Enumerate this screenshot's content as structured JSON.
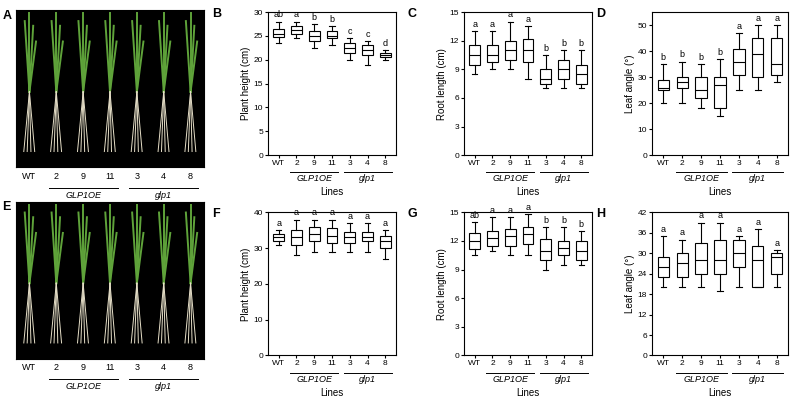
{
  "photos": [
    {
      "panel_label": "A",
      "lines": [
        "WT",
        "2",
        "9",
        "11",
        "3",
        "4",
        "8"
      ],
      "groups": [
        {
          "label": "GLP1OE",
          "members": [
            "2",
            "9",
            "11"
          ]
        },
        {
          "label": "glp1",
          "members": [
            "3",
            "4",
            "8"
          ]
        }
      ]
    },
    {
      "panel_label": "E",
      "lines": [
        "WT",
        "2",
        "9",
        "11",
        "3",
        "4",
        "8"
      ],
      "groups": [
        {
          "label": "GLP1OE",
          "members": [
            "2",
            "9",
            "11"
          ]
        },
        {
          "label": "glp1",
          "members": [
            "3",
            "4",
            "8"
          ]
        }
      ]
    }
  ],
  "chart_data": [
    {
      "type": "box",
      "panel_label": "B",
      "y_label": "Plant height (cm)",
      "x_label": "Lines",
      "categories": [
        "WT",
        "2",
        "9",
        "11",
        "3",
        "4",
        "8"
      ],
      "groups": [
        {
          "label": "GLP1OE",
          "members": [
            "2",
            "9",
            "11"
          ]
        },
        {
          "label": "glp1",
          "members": [
            "3",
            "4",
            "8"
          ]
        }
      ],
      "stats": [
        [
          23.5,
          24.8,
          25.5,
          26.5,
          28
        ],
        [
          24.5,
          25.5,
          26.3,
          27,
          28
        ],
        [
          22.5,
          24,
          25,
          26,
          27.5
        ],
        [
          23,
          24.5,
          25,
          26,
          27
        ],
        [
          20,
          21.5,
          22.5,
          23.5,
          24.5
        ],
        [
          19,
          21,
          22,
          23,
          24
        ],
        [
          20,
          20.5,
          21,
          21.5,
          22
        ]
      ],
      "significance": [
        "ab",
        "a",
        "b",
        "b",
        "c",
        "c",
        "d"
      ],
      "ylim": [
        0,
        30
      ],
      "yticks": [
        0,
        5,
        10,
        15,
        20,
        25,
        30
      ],
      "color": "#000000"
    },
    {
      "type": "box",
      "panel_label": "C",
      "y_label": "Root length (cm)",
      "x_label": "Lines",
      "categories": [
        "WT",
        "2",
        "9",
        "11",
        "3",
        "4",
        "8"
      ],
      "groups": [
        {
          "label": "GLP1OE",
          "members": [
            "2",
            "9",
            "11"
          ]
        },
        {
          "label": "glp1",
          "members": [
            "3",
            "4",
            "8"
          ]
        }
      ],
      "stats": [
        [
          8.5,
          9.5,
          10.5,
          11.5,
          13
        ],
        [
          9,
          9.8,
          10.5,
          11.5,
          13
        ],
        [
          9,
          10,
          11,
          12,
          14
        ],
        [
          8,
          9.8,
          11,
          12.2,
          13.5
        ],
        [
          7,
          7.5,
          8,
          9,
          10.5
        ],
        [
          7,
          8,
          9,
          10,
          11
        ],
        [
          7,
          7.5,
          8.5,
          9.5,
          11
        ]
      ],
      "significance": [
        "a",
        "a",
        "a",
        "a",
        "b",
        "b",
        "b"
      ],
      "ylim": [
        0,
        15
      ],
      "yticks": [
        0,
        3,
        6,
        9,
        12,
        15
      ],
      "color": "#000000"
    },
    {
      "type": "box",
      "panel_label": "D",
      "y_label": "Leaf angle (°)",
      "x_label": "Lines",
      "categories": [
        "WT",
        "2",
        "9",
        "11",
        "3",
        "4",
        "8"
      ],
      "groups": [
        {
          "label": "GLP1OE",
          "members": [
            "2",
            "9",
            "11"
          ]
        },
        {
          "label": "glp1",
          "members": [
            "3",
            "4",
            "8"
          ]
        }
      ],
      "stats": [
        [
          20,
          25,
          26,
          29,
          35
        ],
        [
          20,
          26,
          28,
          30,
          36
        ],
        [
          18,
          22,
          25,
          30,
          35
        ],
        [
          15,
          18,
          27,
          30,
          37
        ],
        [
          25,
          31,
          36,
          41,
          47
        ],
        [
          25,
          30,
          39,
          45,
          50
        ],
        [
          28,
          31,
          35,
          45,
          50
        ]
      ],
      "significance": [
        "b",
        "b",
        "b",
        "b",
        "a",
        "a",
        "a"
      ],
      "ylim": [
        0,
        55
      ],
      "yticks": [
        0,
        10,
        20,
        30,
        40,
        50
      ],
      "color": "#000000"
    },
    {
      "type": "box",
      "panel_label": "F",
      "y_label": "Plant height (cm)",
      "x_label": "Lines",
      "categories": [
        "WT",
        "2",
        "9",
        "11",
        "3",
        "4",
        "8"
      ],
      "groups": [
        {
          "label": "GLP1OE",
          "members": [
            "2",
            "9",
            "11"
          ]
        },
        {
          "label": "glp1",
          "members": [
            "3",
            "4",
            "8"
          ]
        }
      ],
      "stats": [
        [
          31,
          32,
          33,
          34,
          35
        ],
        [
          28,
          31,
          33,
          35,
          38
        ],
        [
          29,
          32,
          34,
          36,
          38
        ],
        [
          29,
          31.5,
          33.5,
          35.5,
          38
        ],
        [
          29,
          31.5,
          33,
          34.5,
          37
        ],
        [
          29,
          32,
          33,
          34.5,
          37
        ],
        [
          27,
          30,
          32,
          33.5,
          35
        ]
      ],
      "significance": [
        "a",
        "a",
        "a",
        "a",
        "a",
        "a",
        "a"
      ],
      "ylim": [
        0,
        40
      ],
      "yticks": [
        0,
        10,
        20,
        30,
        40
      ],
      "color": "#000000"
    },
    {
      "type": "box",
      "panel_label": "G",
      "y_label": "Root length (cm)",
      "x_label": "Lines",
      "categories": [
        "WT",
        "2",
        "9",
        "11",
        "3",
        "4",
        "8"
      ],
      "groups": [
        {
          "label": "GLP1OE",
          "members": [
            "2",
            "9",
            "11"
          ]
        },
        {
          "label": "glp1",
          "members": [
            "3",
            "4",
            "8"
          ]
        }
      ],
      "stats": [
        [
          10.5,
          11.2,
          12,
          12.8,
          14
        ],
        [
          11,
          11.5,
          12.3,
          13,
          14.5
        ],
        [
          10.5,
          11.5,
          12.5,
          13.3,
          14.5
        ],
        [
          10.5,
          11.7,
          12.7,
          13.5,
          14.8
        ],
        [
          9,
          10,
          11,
          12.2,
          13.5
        ],
        [
          9.5,
          10.5,
          11.3,
          12,
          13.5
        ],
        [
          9.5,
          10,
          11,
          12,
          13
        ]
      ],
      "significance": [
        "ab",
        "a",
        "a",
        "a",
        "b",
        "b",
        "b"
      ],
      "ylim": [
        0,
        15
      ],
      "yticks": [
        0,
        3,
        6,
        9,
        12,
        15
      ],
      "color": "#000000"
    },
    {
      "type": "box",
      "panel_label": "H",
      "y_label": "Leaf angle (°)",
      "x_label": "Lines",
      "categories": [
        "WT",
        "2",
        "9",
        "11",
        "3",
        "4",
        "8"
      ],
      "groups": [
        {
          "label": "GLP1OE",
          "members": [
            "2",
            "9",
            "11"
          ]
        },
        {
          "label": "glp1",
          "members": [
            "3",
            "4",
            "8"
          ]
        }
      ],
      "stats": [
        [
          20,
          23,
          26,
          29,
          35
        ],
        [
          20,
          23,
          27,
          30,
          34
        ],
        [
          20,
          24,
          28,
          33,
          39
        ],
        [
          19,
          24,
          28,
          34,
          39
        ],
        [
          20,
          26,
          30,
          34,
          35
        ],
        [
          20,
          20,
          28,
          32,
          37
        ],
        [
          20,
          24,
          29,
          30,
          31
        ]
      ],
      "significance": [
        "a",
        "a",
        "a",
        "a",
        "a",
        "a",
        "a"
      ],
      "ylim": [
        0,
        42
      ],
      "yticks": [
        0,
        6,
        12,
        18,
        24,
        30,
        36,
        42
      ],
      "color": "#000000"
    }
  ]
}
